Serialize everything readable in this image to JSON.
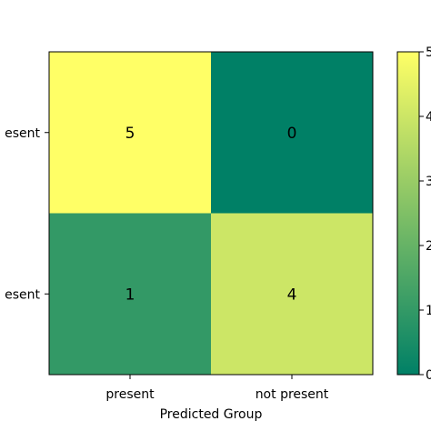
{
  "chart_data": {
    "type": "heatmap",
    "title": "",
    "xlabel": "Predicted Group",
    "ylabel": "",
    "x_categories": [
      "present",
      "not present"
    ],
    "y_categories": [
      "present",
      "not present"
    ],
    "y_tick_labels_visible": [
      "esent",
      "esent"
    ],
    "values": [
      [
        5,
        0
      ],
      [
        1,
        4
      ]
    ],
    "cell_labels": [
      [
        "5",
        "0"
      ],
      [
        "1",
        "4"
      ]
    ],
    "colormap": "summer",
    "value_range": [
      0,
      5
    ],
    "colorbar": {
      "ticks": [
        0,
        1,
        2,
        3,
        4,
        5
      ],
      "tick_labels_visible": [
        "0",
        "1",
        "2",
        "3",
        "4",
        "5"
      ]
    },
    "grid": false
  }
}
